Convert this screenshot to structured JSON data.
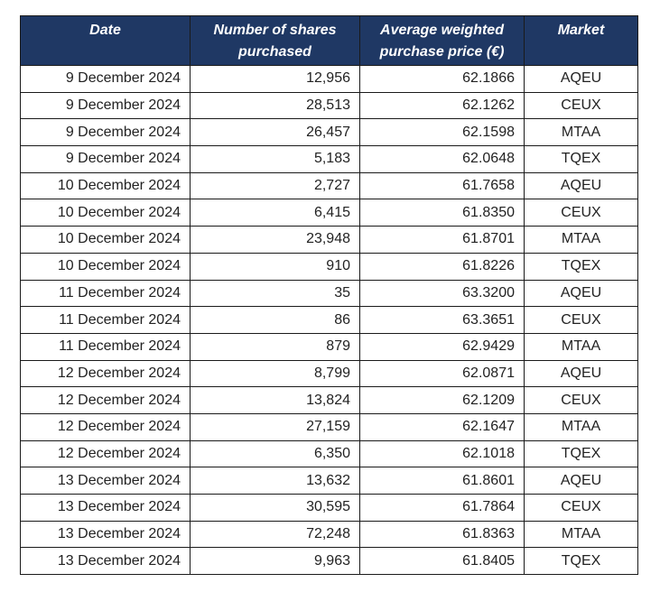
{
  "table": {
    "headers": {
      "date": "Date",
      "shares": "Number of shares purchased",
      "price": "Average weighted purchase price (€)",
      "market": "Market"
    },
    "rows": [
      {
        "date": "9 December 2024",
        "shares": "12,956",
        "price": "62.1866",
        "market": "AQEU"
      },
      {
        "date": "9 December 2024",
        "shares": "28,513",
        "price": "62.1262",
        "market": "CEUX"
      },
      {
        "date": "9 December 2024",
        "shares": "26,457",
        "price": "62.1598",
        "market": "MTAA"
      },
      {
        "date": "9 December 2024",
        "shares": "5,183",
        "price": "62.0648",
        "market": "TQEX"
      },
      {
        "date": "10 December 2024",
        "shares": "2,727",
        "price": "61.7658",
        "market": "AQEU"
      },
      {
        "date": "10 December 2024",
        "shares": "6,415",
        "price": "61.8350",
        "market": "CEUX"
      },
      {
        "date": "10 December 2024",
        "shares": "23,948",
        "price": "61.8701",
        "market": "MTAA"
      },
      {
        "date": "10 December 2024",
        "shares": "910",
        "price": "61.8226",
        "market": "TQEX"
      },
      {
        "date": "11 December 2024",
        "shares": "35",
        "price": "63.3200",
        "market": "AQEU"
      },
      {
        "date": "11 December 2024",
        "shares": "86",
        "price": "63.3651",
        "market": "CEUX"
      },
      {
        "date": "11 December 2024",
        "shares": "879",
        "price": "62.9429",
        "market": "MTAA"
      },
      {
        "date": "12 December 2024",
        "shares": "8,799",
        "price": "62.0871",
        "market": "AQEU"
      },
      {
        "date": "12 December 2024",
        "shares": "13,824",
        "price": "62.1209",
        "market": "CEUX"
      },
      {
        "date": "12 December 2024",
        "shares": "27,159",
        "price": "62.1647",
        "market": "MTAA"
      },
      {
        "date": "12 December 2024",
        "shares": "6,350",
        "price": "62.1018",
        "market": "TQEX"
      },
      {
        "date": "13 December 2024",
        "shares": "13,632",
        "price": "61.8601",
        "market": "AQEU"
      },
      {
        "date": "13 December 2024",
        "shares": "30,595",
        "price": "61.7864",
        "market": "CEUX"
      },
      {
        "date": "13 December 2024",
        "shares": "72,248",
        "price": "61.8363",
        "market": "MTAA"
      },
      {
        "date": "13 December 2024",
        "shares": "9,963",
        "price": "61.8405",
        "market": "TQEX"
      }
    ]
  },
  "colors": {
    "header_background": "#1f3864",
    "header_text": "#ffffff",
    "border": "#1a1a1a",
    "cell_text": "#222222"
  }
}
